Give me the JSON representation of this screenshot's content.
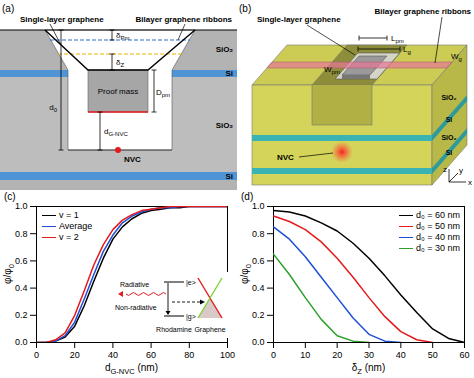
{
  "diagrams": [
    {
      "panel": "(a)",
      "single_layer": "Single-layer graphene",
      "bilayer": "Bilayer graphene ribbons",
      "layers": [
        "SiO₂",
        "Si",
        "SiO₂",
        "Si"
      ],
      "delta_pm": {
        "text": "δ",
        "sub": "Pm"
      },
      "delta_z": {
        "text": "δ",
        "sub": "Z"
      },
      "proof_mass": "Proof mass",
      "d_pm": {
        "text": "D",
        "sub": "pm"
      },
      "d0": {
        "text": "d",
        "sub": "0"
      },
      "d_g_nvc": {
        "text": "d",
        "sub": "G-NVC"
      },
      "nvc": "NVC"
    },
    {
      "panel": "(b)",
      "single_layer": "Single-layer graphene",
      "bilayer": "Bilayer graphene ribbons",
      "l_g": {
        "text": "L",
        "sub": "g"
      },
      "l_pm": {
        "text": "L",
        "sub": "pm"
      },
      "w_pm": {
        "text": "W",
        "sub": "pm"
      },
      "w_g": {
        "text": "W",
        "sub": "g"
      },
      "nvc": "NVC",
      "layers": [
        "SiO₂",
        "Si",
        "SiO₂",
        "Si"
      ],
      "axes": [
        "x",
        "y",
        "z"
      ]
    }
  ],
  "chart_data": [
    {
      "panel": "(c)",
      "type": "line",
      "x_label": {
        "text": "d",
        "sub": "G-NVC",
        "after": "(nm)"
      },
      "y_label": {
        "text": "φ/φ",
        "sub": "0"
      },
      "x": [
        0,
        5,
        10,
        15,
        20,
        25,
        30,
        35,
        40,
        45,
        50,
        55,
        60,
        65,
        70,
        75,
        80,
        85,
        90,
        95,
        100
      ],
      "series": [
        {
          "name": "v = 1",
          "color": "#000000",
          "values": [
            0,
            0,
            0.01,
            0.04,
            0.12,
            0.27,
            0.45,
            0.62,
            0.76,
            0.85,
            0.91,
            0.95,
            0.97,
            0.98,
            0.99,
            0.99,
            1,
            1,
            1,
            1,
            1
          ]
        },
        {
          "name": "Average",
          "color": "#1f4fd6",
          "values": [
            0,
            0,
            0.01,
            0.05,
            0.15,
            0.32,
            0.5,
            0.67,
            0.79,
            0.88,
            0.93,
            0.96,
            0.98,
            0.99,
            0.99,
            1,
            1,
            1,
            1,
            1,
            1
          ]
        },
        {
          "name": "v = 2",
          "color": "#e41a1c",
          "values": [
            0,
            0,
            0.02,
            0.07,
            0.2,
            0.38,
            0.57,
            0.72,
            0.83,
            0.9,
            0.94,
            0.97,
            0.98,
            0.99,
            1,
            1,
            1,
            1,
            1,
            1,
            1
          ]
        }
      ],
      "xlim": [
        0,
        100
      ],
      "xticks": [
        0,
        20,
        40,
        60,
        80,
        100
      ],
      "ylim": [
        0,
        1
      ],
      "yticks": [
        {
          "value": 0,
          "label": "0.0"
        },
        {
          "value": 0.2,
          "label": "0.2"
        },
        {
          "value": 0.4,
          "label": "0.4"
        },
        {
          "value": 0.6,
          "label": "0.6"
        },
        {
          "value": 0.8,
          "label": "0.8"
        },
        {
          "value": 1,
          "label": "1.0"
        }
      ],
      "legend": "top-left",
      "inset": {
        "radiative": "Radiative",
        "non_radiative": "Non-radiative",
        "excited": "|e>",
        "ground": "|g>",
        "rhodamine": "Rhodamine",
        "graphene": "Graphene"
      }
    },
    {
      "panel": "(d)",
      "type": "line",
      "x_label": {
        "text": "δ",
        "sub": "Z",
        "after": "(nm)"
      },
      "y_label": {
        "text": "φ/φ",
        "sub": "0"
      },
      "x": [
        0,
        5,
        10,
        15,
        20,
        25,
        30,
        35,
        40,
        45,
        50,
        55,
        60
      ],
      "series": [
        {
          "name": "d₀ = 60 nm",
          "color": "#000000",
          "values": [
            0.97,
            0.96,
            0.93,
            0.88,
            0.82,
            0.73,
            0.62,
            0.49,
            0.35,
            0.22,
            0.1,
            0.03,
            0
          ]
        },
        {
          "name": "d₀ = 50 nm",
          "color": "#e41a1c",
          "values": [
            0.93,
            0.89,
            0.83,
            0.74,
            0.62,
            0.48,
            0.33,
            0.19,
            0.08,
            0.02,
            0,
            null,
            null
          ]
        },
        {
          "name": "d₀ = 40 nm",
          "color": "#1f4fd6",
          "values": [
            0.85,
            0.76,
            0.63,
            0.48,
            0.33,
            0.18,
            0.06,
            0.01,
            0,
            null,
            null,
            null,
            null
          ]
        },
        {
          "name": "d₀ = 30 nm",
          "color": "#2ca02c",
          "values": [
            0.65,
            0.5,
            0.33,
            0.17,
            0.05,
            0.01,
            0,
            null,
            null,
            null,
            null,
            null,
            null
          ]
        }
      ],
      "xlim": [
        0,
        60
      ],
      "xticks": [
        0,
        10,
        20,
        30,
        40,
        50,
        60
      ],
      "ylim": [
        0,
        1
      ],
      "yticks": [
        {
          "value": 0,
          "label": "0.0"
        },
        {
          "value": 0.2,
          "label": "0.2"
        },
        {
          "value": 0.4,
          "label": "0.4"
        },
        {
          "value": 0.6,
          "label": "0.6"
        },
        {
          "value": 0.8,
          "label": "0.8"
        },
        {
          "value": 1,
          "label": "1.0"
        }
      ],
      "legend": "top-right"
    }
  ]
}
